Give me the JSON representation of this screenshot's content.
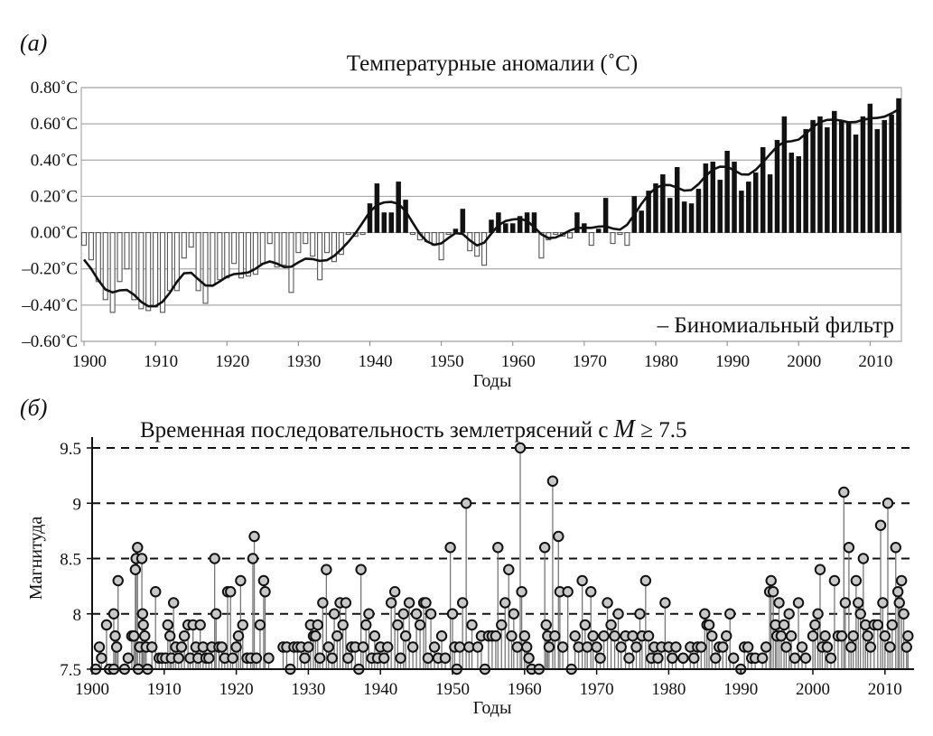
{
  "chart_data": [
    {
      "type": "bar",
      "panel_label": "(a)",
      "title": "Температурные аномалии (˚C)",
      "xlabel": "Годы",
      "ylabel": "",
      "xlim": [
        1900,
        2014
      ],
      "ylim": [
        -0.6,
        0.8
      ],
      "grid": true,
      "yticks": [
        0.8,
        0.6,
        0.4,
        0.2,
        0.0,
        -0.2,
        -0.4,
        -0.6
      ],
      "ytick_labels": [
        "0.80˚C",
        "0.60˚C",
        "0.40˚C",
        "0.20˚C",
        "0.00˚C",
        "–0.20˚C",
        "–0.40˚C",
        "–0.60˚C"
      ],
      "xticks": [
        "1900",
        "1910",
        "1920",
        "1930",
        "1940",
        "1950",
        "1960",
        "1970",
        "1980",
        "1990",
        "2000",
        "2010"
      ],
      "legend": {
        "text": "– Биномиальный фильтр",
        "position": "bottom-right"
      },
      "colors": {
        "positive": "#111111",
        "negative": "#ffffff",
        "filter": "#111111"
      },
      "start_year": 1900,
      "values": [
        -0.07,
        -0.15,
        -0.27,
        -0.37,
        -0.44,
        -0.27,
        -0.2,
        -0.37,
        -0.42,
        -0.43,
        -0.41,
        -0.44,
        -0.32,
        -0.32,
        -0.14,
        -0.08,
        -0.32,
        -0.39,
        -0.29,
        -0.26,
        -0.25,
        -0.17,
        -0.25,
        -0.24,
        -0.23,
        -0.17,
        -0.06,
        -0.19,
        -0.18,
        -0.33,
        -0.11,
        -0.06,
        -0.13,
        -0.26,
        -0.11,
        -0.16,
        -0.12,
        -0.01,
        -0.02,
        -0.01,
        0.16,
        0.27,
        0.11,
        0.11,
        0.28,
        0.18,
        -0.01,
        -0.04,
        -0.05,
        -0.07,
        -0.15,
        -0.01,
        0.02,
        0.13,
        -0.1,
        -0.13,
        -0.18,
        0.07,
        0.11,
        0.05,
        0.05,
        0.09,
        0.11,
        0.11,
        -0.14,
        -0.04,
        -0.01,
        -0.02,
        -0.03,
        0.11,
        0.05,
        -0.07,
        0.02,
        0.19,
        -0.06,
        -0.01,
        -0.07,
        0.2,
        0.12,
        0.23,
        0.27,
        0.32,
        0.19,
        0.36,
        0.17,
        0.16,
        0.24,
        0.38,
        0.39,
        0.29,
        0.45,
        0.39,
        0.23,
        0.28,
        0.33,
        0.47,
        0.32,
        0.51,
        0.64,
        0.44,
        0.42,
        0.57,
        0.62,
        0.64,
        0.58,
        0.67,
        0.62,
        0.61,
        0.54,
        0.64,
        0.71,
        0.57,
        0.62,
        0.65,
        0.74
      ]
    },
    {
      "type": "scatter",
      "panel_label": "(б)",
      "title_parts": [
        "Временная последовательность землетрясений с ",
        "M",
        " ≥ 7.5"
      ],
      "xlabel": "Годы",
      "ylabel": "Магнитуда",
      "xlim": [
        1900,
        2014
      ],
      "ylim": [
        7.5,
        9.5
      ],
      "yticks": [
        "9.5",
        "9",
        "8.5",
        "8",
        "7.5"
      ],
      "xticks": [
        "1900",
        "1910",
        "1920",
        "1930",
        "1940",
        "1950",
        "1960",
        "1970",
        "1980",
        "1990",
        "2000",
        "2010"
      ],
      "grid": "dashed horizontal",
      "colors": {
        "marker_fill": "#c8c8c8",
        "marker_edge": "#111111",
        "stem": "#777777"
      },
      "points": [
        [
          1900.5,
          7.5
        ],
        [
          1901,
          7.7
        ],
        [
          1901.3,
          7.6
        ],
        [
          1902,
          7.9
        ],
        [
          1902.4,
          7.5
        ],
        [
          1903,
          7.5
        ],
        [
          1903.2,
          7.8
        ],
        [
          1903.4,
          7.7
        ],
        [
          1903,
          8.0
        ],
        [
          1903.6,
          8.3
        ],
        [
          1904.5,
          7.5
        ],
        [
          1905,
          7.6
        ],
        [
          1905.5,
          7.8
        ],
        [
          1905.8,
          7.8
        ],
        [
          1906,
          8.4
        ],
        [
          1906.1,
          8.5
        ],
        [
          1906.3,
          8.6
        ],
        [
          1906.4,
          7.5
        ],
        [
          1906.6,
          7.7
        ],
        [
          1906.9,
          8.5
        ],
        [
          1907,
          8.0
        ],
        [
          1907.1,
          7.9
        ],
        [
          1907.3,
          7.8
        ],
        [
          1907.5,
          7.7
        ],
        [
          1907.7,
          7.5
        ],
        [
          1908.3,
          7.7
        ],
        [
          1908.8,
          8.2
        ],
        [
          1909.3,
          7.6
        ],
        [
          1909.7,
          7.6
        ],
        [
          1910.2,
          7.6
        ],
        [
          1910.5,
          7.9
        ],
        [
          1910.8,
          7.8
        ],
        [
          1911,
          7.6
        ],
        [
          1911.3,
          8.1
        ],
        [
          1911.6,
          7.7
        ],
        [
          1912,
          7.6
        ],
        [
          1912.4,
          7.7
        ],
        [
          1912.8,
          7.8
        ],
        [
          1913.3,
          7.9
        ],
        [
          1913.6,
          7.6
        ],
        [
          1914,
          7.9
        ],
        [
          1914.4,
          7.7
        ],
        [
          1914.7,
          7.6
        ],
        [
          1915,
          7.9
        ],
        [
          1915.4,
          7.7
        ],
        [
          1915.8,
          7.6
        ],
        [
          1916.2,
          7.6
        ],
        [
          1916.6,
          7.7
        ],
        [
          1917,
          8.5
        ],
        [
          1917.2,
          8.0
        ],
        [
          1917.6,
          7.7
        ],
        [
          1918,
          7.7
        ],
        [
          1918.4,
          7.6
        ],
        [
          1918.8,
          8.2
        ],
        [
          1919.2,
          8.2
        ],
        [
          1919.5,
          7.6
        ],
        [
          1920,
          7.7
        ],
        [
          1920.3,
          7.8
        ],
        [
          1920.6,
          8.3
        ],
        [
          1920.9,
          7.9
        ],
        [
          1921.5,
          7.6
        ],
        [
          1922,
          7.6
        ],
        [
          1922.3,
          8.5
        ],
        [
          1922.5,
          8.7
        ],
        [
          1922.8,
          7.6
        ],
        [
          1923.3,
          7.9
        ],
        [
          1923.8,
          8.3
        ],
        [
          1924,
          8.2
        ],
        [
          1924.5,
          7.6
        ],
        [
          1926.5,
          7.7
        ],
        [
          1927,
          7.7
        ],
        [
          1927.5,
          7.5
        ],
        [
          1928,
          7.7
        ],
        [
          1928.5,
          7.7
        ],
        [
          1929,
          7.7
        ],
        [
          1929.5,
          7.6
        ],
        [
          1930,
          7.7
        ],
        [
          1930.3,
          7.9
        ],
        [
          1930.7,
          7.8
        ],
        [
          1931,
          7.8
        ],
        [
          1931.3,
          7.9
        ],
        [
          1931.6,
          7.6
        ],
        [
          1932,
          8.1
        ],
        [
          1932.5,
          8.4
        ],
        [
          1932.8,
          7.7
        ],
        [
          1933.3,
          7.6
        ],
        [
          1933.6,
          8.0
        ],
        [
          1934,
          7.8
        ],
        [
          1934.4,
          8.1
        ],
        [
          1934.8,
          7.9
        ],
        [
          1935.2,
          8.1
        ],
        [
          1935.5,
          7.6
        ],
        [
          1936,
          7.7
        ],
        [
          1936.5,
          7.7
        ],
        [
          1937,
          7.5
        ],
        [
          1937.3,
          8.4
        ],
        [
          1937.6,
          7.7
        ],
        [
          1938,
          7.9
        ],
        [
          1938.4,
          8.0
        ],
        [
          1938.8,
          7.6
        ],
        [
          1939.2,
          7.8
        ],
        [
          1939.6,
          7.6
        ],
        [
          1940,
          7.7
        ],
        [
          1940.5,
          7.6
        ],
        [
          1941,
          7.7
        ],
        [
          1941.5,
          8.1
        ],
        [
          1942,
          8.2
        ],
        [
          1942.4,
          7.9
        ],
        [
          1942.8,
          7.6
        ],
        [
          1943.2,
          8.0
        ],
        [
          1943.5,
          7.8
        ],
        [
          1944,
          8.1
        ],
        [
          1944.5,
          7.7
        ],
        [
          1945,
          8.0
        ],
        [
          1945.5,
          7.9
        ],
        [
          1946,
          8.1
        ],
        [
          1946.3,
          8.1
        ],
        [
          1946.6,
          7.6
        ],
        [
          1947,
          8.0
        ],
        [
          1947.5,
          7.7
        ],
        [
          1948,
          7.6
        ],
        [
          1948.5,
          7.8
        ],
        [
          1949,
          7.6
        ],
        [
          1949.7,
          8.6
        ],
        [
          1950,
          8.0
        ],
        [
          1950.3,
          7.7
        ],
        [
          1950.6,
          7.5
        ],
        [
          1951,
          7.7
        ],
        [
          1951.4,
          8.1
        ],
        [
          1951.9,
          9.0
        ],
        [
          1952.3,
          7.7
        ],
        [
          1952.7,
          7.9
        ],
        [
          1953.5,
          7.7
        ],
        [
          1954,
          7.8
        ],
        [
          1954.5,
          7.5
        ],
        [
          1955,
          7.8
        ],
        [
          1955.5,
          7.8
        ],
        [
          1956,
          7.8
        ],
        [
          1956.3,
          8.6
        ],
        [
          1956.8,
          7.9
        ],
        [
          1957.3,
          8.1
        ],
        [
          1957.8,
          8.4
        ],
        [
          1958.2,
          7.8
        ],
        [
          1958.5,
          8.0
        ],
        [
          1959,
          7.7
        ],
        [
          1959.4,
          9.5
        ],
        [
          1959.6,
          8.2
        ],
        [
          1960,
          7.8
        ],
        [
          1960.3,
          7.7
        ],
        [
          1960.6,
          7.6
        ],
        [
          1961,
          7.5
        ],
        [
          1962,
          7.5
        ],
        [
          1962.8,
          8.6
        ],
        [
          1963,
          7.9
        ],
        [
          1963.2,
          7.8
        ],
        [
          1963.4,
          7.7
        ],
        [
          1963.9,
          9.2
        ],
        [
          1964.2,
          7.8
        ],
        [
          1964.7,
          8.7
        ],
        [
          1964.9,
          8.2
        ],
        [
          1965.3,
          7.7
        ],
        [
          1966,
          8.2
        ],
        [
          1966.5,
          7.5
        ],
        [
          1967,
          7.8
        ],
        [
          1967.5,
          7.7
        ],
        [
          1968,
          8.3
        ],
        [
          1968.4,
          7.9
        ],
        [
          1968.7,
          7.7
        ],
        [
          1969.2,
          8.2
        ],
        [
          1969.5,
          7.8
        ],
        [
          1970,
          7.7
        ],
        [
          1970.5,
          7.6
        ],
        [
          1971,
          7.8
        ],
        [
          1971.5,
          8.1
        ],
        [
          1972,
          7.9
        ],
        [
          1972.5,
          7.8
        ],
        [
          1973,
          8.0
        ],
        [
          1973.4,
          7.7
        ],
        [
          1974,
          7.8
        ],
        [
          1974.5,
          7.6
        ],
        [
          1975,
          7.8
        ],
        [
          1975.5,
          7.7
        ],
        [
          1976,
          8.0
        ],
        [
          1976.3,
          7.8
        ],
        [
          1976.8,
          8.3
        ],
        [
          1977.2,
          7.8
        ],
        [
          1977.6,
          7.6
        ],
        [
          1978,
          7.7
        ],
        [
          1978.5,
          7.6
        ],
        [
          1979,
          7.7
        ],
        [
          1979.5,
          8.1
        ],
        [
          1980,
          7.7
        ],
        [
          1980.5,
          7.6
        ],
        [
          1981,
          7.7
        ],
        [
          1982,
          7.6
        ],
        [
          1983,
          7.7
        ],
        [
          1983.5,
          7.6
        ],
        [
          1984,
          7.7
        ],
        [
          1984.5,
          7.7
        ],
        [
          1985,
          8.0
        ],
        [
          1985.3,
          7.9
        ],
        [
          1985.6,
          7.9
        ],
        [
          1986,
          7.8
        ],
        [
          1986.5,
          7.6
        ],
        [
          1987,
          7.7
        ],
        [
          1987.5,
          7.7
        ],
        [
          1988,
          7.8
        ],
        [
          1988.5,
          8.0
        ],
        [
          1989,
          7.6
        ],
        [
          1990,
          7.5
        ],
        [
          1990.5,
          7.7
        ],
        [
          1991,
          7.7
        ],
        [
          1991.5,
          7.6
        ],
        [
          1992,
          7.6
        ],
        [
          1993,
          7.6
        ],
        [
          1993.5,
          7.7
        ],
        [
          1994,
          8.2
        ],
        [
          1994.2,
          8.3
        ],
        [
          1994.5,
          8.2
        ],
        [
          1994.8,
          7.9
        ],
        [
          1995,
          7.8
        ],
        [
          1995.3,
          8.1
        ],
        [
          1995.6,
          7.8
        ],
        [
          1996,
          7.9
        ],
        [
          1996.3,
          7.7
        ],
        [
          1996.7,
          8.0
        ],
        [
          1997,
          7.8
        ],
        [
          1997.5,
          7.6
        ],
        [
          1998,
          8.1
        ],
        [
          1998.5,
          7.7
        ],
        [
          1999,
          7.6
        ],
        [
          2000,
          7.8
        ],
        [
          2000.3,
          7.9
        ],
        [
          2000.7,
          8.0
        ],
        [
          2001,
          8.4
        ],
        [
          2001.3,
          7.7
        ],
        [
          2001.7,
          7.8
        ],
        [
          2002,
          7.7
        ],
        [
          2002.5,
          7.6
        ],
        [
          2003,
          8.3
        ],
        [
          2003.5,
          7.8
        ],
        [
          2004,
          7.8
        ],
        [
          2004.3,
          9.1
        ],
        [
          2004.5,
          8.1
        ],
        [
          2005,
          8.6
        ],
        [
          2005.3,
          7.7
        ],
        [
          2005.6,
          7.8
        ],
        [
          2006,
          8.3
        ],
        [
          2006.3,
          8.1
        ],
        [
          2006.6,
          8.0
        ],
        [
          2007,
          8.5
        ],
        [
          2007.3,
          7.9
        ],
        [
          2007.6,
          7.8
        ],
        [
          2008,
          7.7
        ],
        [
          2008.5,
          7.9
        ],
        [
          2009,
          7.9
        ],
        [
          2009.4,
          8.8
        ],
        [
          2009.7,
          8.1
        ],
        [
          2010,
          7.8
        ],
        [
          2010.4,
          9.0
        ],
        [
          2010.7,
          7.7
        ],
        [
          2011,
          7.9
        ],
        [
          2011.5,
          8.6
        ],
        [
          2011.8,
          8.2
        ],
        [
          2012,
          8.1
        ],
        [
          2012.3,
          8.3
        ],
        [
          2012.6,
          8.0
        ],
        [
          2013,
          7.7
        ],
        [
          2013.2,
          7.8
        ]
      ]
    }
  ]
}
